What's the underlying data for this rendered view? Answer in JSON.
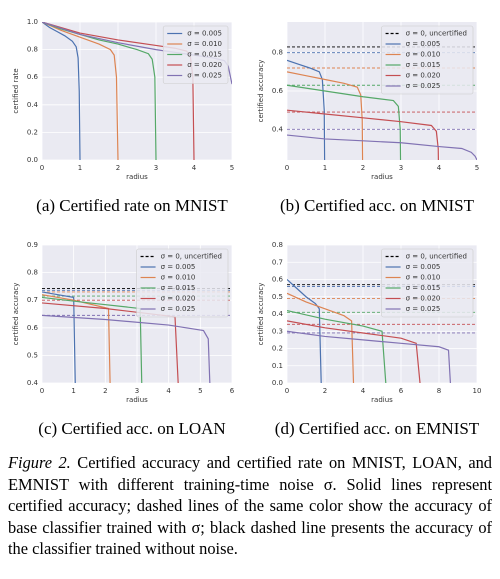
{
  "chart_data": [
    {
      "type": "line",
      "caption": "(a) Certified rate on MNIST",
      "xlabel": "radius",
      "ylabel": "certified rate",
      "xlim": [
        0,
        5
      ],
      "ylim": [
        0,
        1
      ],
      "xticks": [
        0,
        1,
        2,
        3,
        4,
        5
      ],
      "yticks": [
        {
          "value": 0,
          "label": "0.0"
        },
        0.2,
        0.4,
        0.6,
        0.8,
        {
          "value": 1,
          "label": "1.0"
        }
      ],
      "grid": true,
      "legend": "upper right",
      "baselines": [],
      "series": [
        {
          "name": "σ = 0.005",
          "color": "#4c72b0",
          "x": [
            0,
            0.2,
            0.4,
            0.6,
            0.8,
            0.9,
            0.95,
            0.98,
            1.0
          ],
          "values": [
            1.0,
            0.96,
            0.93,
            0.9,
            0.86,
            0.82,
            0.74,
            0.5,
            0
          ]
        },
        {
          "name": "σ = 0.010",
          "color": "#dd8452",
          "x": [
            0,
            0.5,
            1,
            1.5,
            1.8,
            1.9,
            1.96,
            2.0
          ],
          "values": [
            1.0,
            0.94,
            0.89,
            0.84,
            0.8,
            0.76,
            0.6,
            0
          ]
        },
        {
          "name": "σ = 0.015",
          "color": "#55a868",
          "x": [
            0,
            0.5,
            1,
            1.5,
            2,
            2.5,
            2.8,
            2.9,
            2.97,
            3.0
          ],
          "values": [
            1.0,
            0.95,
            0.91,
            0.87,
            0.84,
            0.8,
            0.77,
            0.73,
            0.6,
            0
          ]
        },
        {
          "name": "σ = 0.020",
          "color": "#c44e52",
          "x": [
            0,
            1,
            2,
            3,
            3.5,
            3.8,
            3.9,
            3.97,
            4.0
          ],
          "values": [
            1.0,
            0.92,
            0.87,
            0.83,
            0.81,
            0.79,
            0.76,
            0.6,
            0
          ]
        },
        {
          "name": "σ = 0.025",
          "color": "#8172b3",
          "x": [
            0,
            1,
            2,
            3,
            4,
            4.5,
            4.8,
            4.9,
            5.0
          ],
          "values": [
            1.0,
            0.91,
            0.85,
            0.8,
            0.76,
            0.74,
            0.72,
            0.68,
            0.55
          ]
        }
      ]
    },
    {
      "type": "line",
      "caption": "(b) Certified acc. on MNIST",
      "xlabel": "radius",
      "ylabel": "certified accuracy",
      "xlim": [
        0,
        5
      ],
      "ylim": [
        0.24,
        0.96
      ],
      "xticks": [
        0,
        1,
        2,
        3,
        4,
        5
      ],
      "yticks": [
        0.4,
        0.6,
        0.8
      ],
      "grid": true,
      "legend": "upper right",
      "baselines": [
        {
          "name": "σ = 0, uncertified",
          "color": "#000000",
          "value": 0.83
        },
        {
          "color": "#4c72b0",
          "value": 0.8
        },
        {
          "color": "#dd8452",
          "value": 0.72
        },
        {
          "color": "#55a868",
          "value": 0.63
        },
        {
          "color": "#c44e52",
          "value": 0.49
        },
        {
          "color": "#8172b3",
          "value": 0.4
        }
      ],
      "series": [
        {
          "name": "σ = 0.005",
          "color": "#4c72b0",
          "x": [
            0,
            0.3,
            0.6,
            0.85,
            0.93,
            0.98,
            1.0
          ],
          "values": [
            0.76,
            0.74,
            0.72,
            0.7,
            0.66,
            0.5,
            0
          ]
        },
        {
          "name": "σ = 0.010",
          "color": "#dd8452",
          "x": [
            0,
            0.5,
            1,
            1.5,
            1.85,
            1.94,
            1.98,
            2.0
          ],
          "values": [
            0.7,
            0.68,
            0.66,
            0.64,
            0.62,
            0.58,
            0.45,
            0
          ]
        },
        {
          "name": "σ = 0.015",
          "color": "#55a868",
          "x": [
            0,
            1,
            2,
            2.8,
            2.93,
            2.98,
            3.0
          ],
          "values": [
            0.63,
            0.6,
            0.57,
            0.55,
            0.52,
            0.4,
            0
          ]
        },
        {
          "name": "σ = 0.020",
          "color": "#c44e52",
          "x": [
            0,
            1,
            2,
            3,
            3.8,
            3.93,
            3.98,
            4.0
          ],
          "values": [
            0.5,
            0.48,
            0.46,
            0.44,
            0.42,
            0.39,
            0.3,
            0
          ]
        },
        {
          "name": "σ = 0.025",
          "color": "#8172b3",
          "x": [
            0,
            1,
            2,
            3,
            4,
            4.6,
            4.85,
            4.95,
            5.0
          ],
          "values": [
            0.37,
            0.35,
            0.34,
            0.33,
            0.31,
            0.3,
            0.28,
            0.26,
            0.24
          ]
        }
      ]
    },
    {
      "type": "line",
      "caption": "(c) Certified acc. on LOAN",
      "xlabel": "radius",
      "ylabel": "certified accuracy",
      "xlim": [
        0,
        6
      ],
      "ylim": [
        0.4,
        0.9
      ],
      "xticks": [
        0,
        1,
        2,
        3,
        4,
        5,
        6
      ],
      "yticks": [
        0.4,
        0.5,
        0.6,
        0.7,
        0.8,
        0.9
      ],
      "grid": true,
      "legend": "upper right",
      "baselines": [
        {
          "name": "σ = 0, uncertified",
          "color": "#000000",
          "value": 0.742
        },
        {
          "color": "#4c72b0",
          "value": 0.736
        },
        {
          "color": "#dd8452",
          "value": 0.73
        },
        {
          "color": "#55a868",
          "value": 0.715
        },
        {
          "color": "#c44e52",
          "value": 0.7
        },
        {
          "color": "#8172b3",
          "value": 0.645
        }
      ],
      "series": [
        {
          "name": "σ = 0.005",
          "color": "#4c72b0",
          "x": [
            0,
            0.5,
            1.0,
            1.05
          ],
          "values": [
            0.73,
            0.72,
            0.71,
            0.4
          ]
        },
        {
          "name": "σ = 0.010",
          "color": "#dd8452",
          "x": [
            0,
            1,
            2.1,
            2.15
          ],
          "values": [
            0.72,
            0.7,
            0.67,
            0.4
          ]
        },
        {
          "name": "σ = 0.015",
          "color": "#55a868",
          "x": [
            0,
            1.5,
            3.1,
            3.15
          ],
          "values": [
            0.71,
            0.69,
            0.67,
            0.4
          ]
        },
        {
          "name": "σ = 0.020",
          "color": "#c44e52",
          "x": [
            0,
            2,
            4.2,
            4.3
          ],
          "values": [
            0.69,
            0.67,
            0.64,
            0.4
          ]
        },
        {
          "name": "σ = 0.025",
          "color": "#8172b3",
          "x": [
            0,
            2,
            4,
            5.1,
            5.25,
            5.3
          ],
          "values": [
            0.645,
            0.63,
            0.61,
            0.59,
            0.56,
            0.4
          ]
        }
      ]
    },
    {
      "type": "line",
      "caption": "(d) Certified acc. on EMNIST",
      "xlabel": "radius",
      "ylabel": "certified accuracy",
      "xlim": [
        0,
        10
      ],
      "ylim": [
        0,
        0.8
      ],
      "xticks": [
        0,
        2,
        4,
        6,
        8,
        10
      ],
      "yticks": [
        {
          "value": 0,
          "label": "0.0"
        },
        0.1,
        0.2,
        0.3,
        0.4,
        0.5,
        0.6,
        0.7,
        0.8
      ],
      "grid": true,
      "legend": "upper right",
      "baselines": [
        {
          "name": "σ = 0, uncertified",
          "color": "#000000",
          "value": 0.57
        },
        {
          "color": "#4c72b0",
          "value": 0.56
        },
        {
          "color": "#dd8452",
          "value": 0.49
        },
        {
          "color": "#55a868",
          "value": 0.41
        },
        {
          "color": "#c44e52",
          "value": 0.34
        },
        {
          "color": "#8172b3",
          "value": 0.29
        }
      ],
      "series": [
        {
          "name": "σ = 0.005",
          "color": "#4c72b0",
          "x": [
            0,
            0.5,
            1,
            1.5,
            1.7,
            1.8
          ],
          "values": [
            0.6,
            0.55,
            0.5,
            0.46,
            0.43,
            0
          ]
        },
        {
          "name": "σ = 0.010",
          "color": "#dd8452",
          "x": [
            0,
            1,
            2,
            3,
            3.4,
            3.5
          ],
          "values": [
            0.52,
            0.47,
            0.43,
            0.39,
            0.36,
            0
          ]
        },
        {
          "name": "σ = 0.015",
          "color": "#55a868",
          "x": [
            0,
            2,
            4,
            5.0,
            5.2
          ],
          "values": [
            0.42,
            0.37,
            0.33,
            0.3,
            0
          ]
        },
        {
          "name": "σ = 0.020",
          "color": "#c44e52",
          "x": [
            0,
            2,
            4,
            6,
            6.8,
            7.0
          ],
          "values": [
            0.36,
            0.32,
            0.29,
            0.26,
            0.23,
            0
          ]
        },
        {
          "name": "σ = 0.025",
          "color": "#8172b3",
          "x": [
            0,
            2,
            4,
            6,
            8,
            8.5,
            8.6
          ],
          "values": [
            0.3,
            0.27,
            0.25,
            0.23,
            0.21,
            0.19,
            0
          ]
        }
      ]
    }
  ],
  "figure_caption": {
    "label": "Figure 2.",
    "text": "Certified accuracy and certified rate on MNIST, LOAN, and EMNIST with different training-time noise σ. Solid lines represent certified accuracy; dashed lines of the same color show the accuracy of base classifier trained with σ; black dashed line presents the accuracy of the classifier trained without noise."
  }
}
